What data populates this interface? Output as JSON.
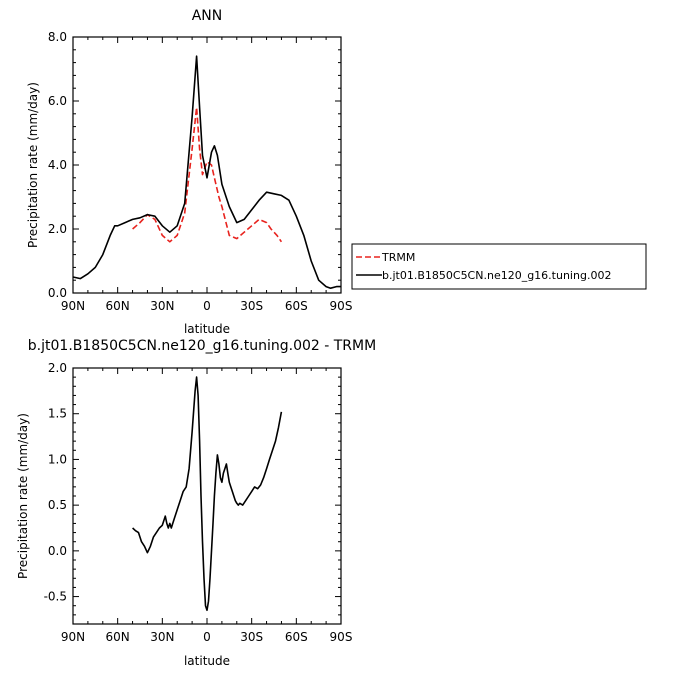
{
  "chart_data": [
    {
      "type": "line",
      "title": "ANN",
      "xlabel": "latitude",
      "ylabel": "Precipitation rate  (mm/day)",
      "xlim": [
        90,
        -90
      ],
      "ylim": [
        0,
        8
      ],
      "xticks": [
        90,
        60,
        30,
        0,
        -30,
        -60,
        -90
      ],
      "xtick_labels": [
        "90N",
        "60N",
        "30N",
        "0",
        "30S",
        "60S",
        "90S"
      ],
      "yticks": [
        0,
        2,
        4,
        6,
        8
      ],
      "ytick_labels": [
        "0.0",
        "2.0",
        "4.0",
        "6.0",
        "8.0"
      ],
      "grid": false,
      "legend_position": "right",
      "series": [
        {
          "name": "TRMM",
          "color": "#e8231e",
          "style": "dashed",
          "x": [
            50,
            45,
            40,
            35,
            30,
            25,
            20,
            15,
            10,
            7,
            5,
            3,
            0,
            -3,
            -5,
            -8,
            -10,
            -15,
            -20,
            -25,
            -30,
            -35,
            -40,
            -43,
            -47,
            -50
          ],
          "y": [
            2.0,
            2.2,
            2.45,
            2.3,
            1.8,
            1.6,
            1.8,
            2.5,
            4.5,
            5.8,
            4.5,
            3.7,
            4.1,
            4.0,
            3.6,
            3.0,
            2.7,
            1.8,
            1.7,
            1.9,
            2.1,
            2.3,
            2.2,
            2.0,
            1.8,
            1.6
          ]
        },
        {
          "name": "b.jt01.B1850C5CN.ne120_g16.tuning.002",
          "color": "#000000",
          "style": "solid",
          "x": [
            90,
            85,
            80,
            75,
            70,
            65,
            62,
            60,
            55,
            50,
            45,
            40,
            35,
            30,
            25,
            20,
            15,
            10,
            7,
            5,
            3,
            0,
            -3,
            -5,
            -7,
            -10,
            -15,
            -20,
            -25,
            -30,
            -35,
            -40,
            -45,
            -50,
            -55,
            -60,
            -65,
            -70,
            -75,
            -80,
            -83,
            -87,
            -90
          ],
          "y": [
            0.5,
            0.45,
            0.6,
            0.8,
            1.2,
            1.8,
            2.1,
            2.1,
            2.2,
            2.3,
            2.35,
            2.45,
            2.4,
            2.1,
            1.9,
            2.1,
            2.8,
            5.5,
            7.4,
            5.8,
            4.3,
            3.6,
            4.4,
            4.6,
            4.3,
            3.4,
            2.7,
            2.2,
            2.3,
            2.6,
            2.9,
            3.15,
            3.1,
            3.05,
            2.9,
            2.4,
            1.8,
            1.0,
            0.4,
            0.2,
            0.15,
            0.2,
            0.2
          ]
        }
      ]
    },
    {
      "type": "line",
      "title": "b.jt01.B1850C5CN.ne120_g16.tuning.002 - TRMM",
      "xlabel": "latitude",
      "ylabel": "Precipitation rate  (mm/day)",
      "xlim": [
        90,
        -90
      ],
      "ylim": [
        -0.8,
        2.0
      ],
      "xticks": [
        90,
        60,
        30,
        0,
        -30,
        -60,
        -90
      ],
      "xtick_labels": [
        "90N",
        "60N",
        "30N",
        "0",
        "30S",
        "60S",
        "90S"
      ],
      "yticks": [
        -0.5,
        0,
        0.5,
        1.0,
        1.5,
        2.0
      ],
      "ytick_labels": [
        "-0.5",
        "0.0",
        "0.5",
        "1.0",
        "1.5",
        "2.0"
      ],
      "grid": false,
      "series": [
        {
          "color": "#000000",
          "style": "solid",
          "x": [
            50,
            48,
            46,
            44,
            42,
            40,
            38,
            36,
            34,
            32,
            30,
            28,
            27,
            26,
            25,
            24,
            22,
            20,
            18,
            16,
            14,
            12,
            10,
            8,
            7,
            6,
            5,
            4,
            3,
            2,
            1,
            0,
            -1,
            -2,
            -3,
            -4,
            -5,
            -6,
            -7,
            -8,
            -9,
            -10,
            -11,
            -12,
            -13,
            -14,
            -15,
            -16,
            -17,
            -18,
            -19,
            -20,
            -21,
            -22,
            -24,
            -26,
            -28,
            -30,
            -32,
            -34,
            -36,
            -38,
            -40,
            -42,
            -44,
            -46,
            -48,
            -50
          ],
          "y": [
            0.25,
            0.22,
            0.2,
            0.1,
            0.05,
            -0.02,
            0.05,
            0.15,
            0.2,
            0.25,
            0.28,
            0.38,
            0.3,
            0.25,
            0.3,
            0.25,
            0.35,
            0.45,
            0.55,
            0.65,
            0.7,
            0.9,
            1.3,
            1.75,
            1.9,
            1.7,
            1.2,
            0.6,
            0.1,
            -0.3,
            -0.6,
            -0.65,
            -0.55,
            -0.3,
            0.0,
            0.3,
            0.6,
            0.85,
            1.05,
            0.95,
            0.8,
            0.75,
            0.85,
            0.9,
            0.95,
            0.85,
            0.75,
            0.7,
            0.65,
            0.6,
            0.55,
            0.52,
            0.5,
            0.52,
            0.5,
            0.55,
            0.6,
            0.65,
            0.7,
            0.68,
            0.72,
            0.8,
            0.9,
            1.0,
            1.1,
            1.2,
            1.35,
            1.52
          ]
        }
      ]
    }
  ]
}
